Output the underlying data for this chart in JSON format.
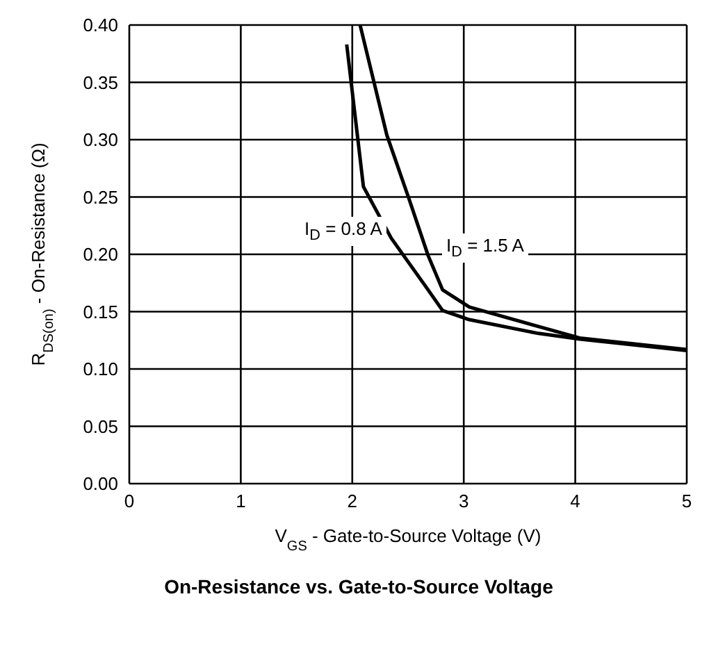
{
  "chart_data": {
    "type": "line",
    "title": "On-Resistance vs. Gate-to-Source Voltage",
    "xlabel": "V$_{GS}$ - Gate-to-Source Voltage (V)",
    "ylabel": "R$_{DS(on)}$ - On-Resistance (Ω)",
    "series": [
      {
        "name": "I$_{D}$ = 0.8 A",
        "color": "#000000",
        "x": [
          1.95,
          2.1,
          2.35,
          2.68,
          2.81,
          3.05,
          3.67,
          4.04,
          5
        ],
        "values": [
          0.383,
          0.259,
          0.214,
          0.169,
          0.151,
          0.143,
          0.131,
          0.126,
          0.116
        ]
      },
      {
        "name": "I$_{D}$ = 1.5 A",
        "color": "#000000",
        "x": [
          2.07,
          2.31,
          2.51,
          2.68,
          2.81,
          3.05,
          3.67,
          4.04,
          5
        ],
        "values": [
          0.4,
          0.304,
          0.248,
          0.199,
          0.169,
          0.154,
          0.137,
          0.127,
          0.117
        ]
      }
    ],
    "xlim": [
      0,
      5
    ],
    "xticks": [
      0,
      1,
      2,
      3,
      4,
      5
    ],
    "ylim": [
      0,
      0.4
    ],
    "yticks": [
      {
        "value": 0,
        "label": "0.00"
      },
      0.05,
      {
        "value": 0.1,
        "label": "0.10"
      },
      0.15,
      {
        "value": 0.2,
        "label": "0.20"
      },
      0.25,
      {
        "value": 0.3,
        "label": "0.30"
      },
      0.35,
      {
        "value": 0.4,
        "label": "0.40"
      }
    ],
    "grid": true,
    "marker": "none",
    "line_style": "solid"
  }
}
